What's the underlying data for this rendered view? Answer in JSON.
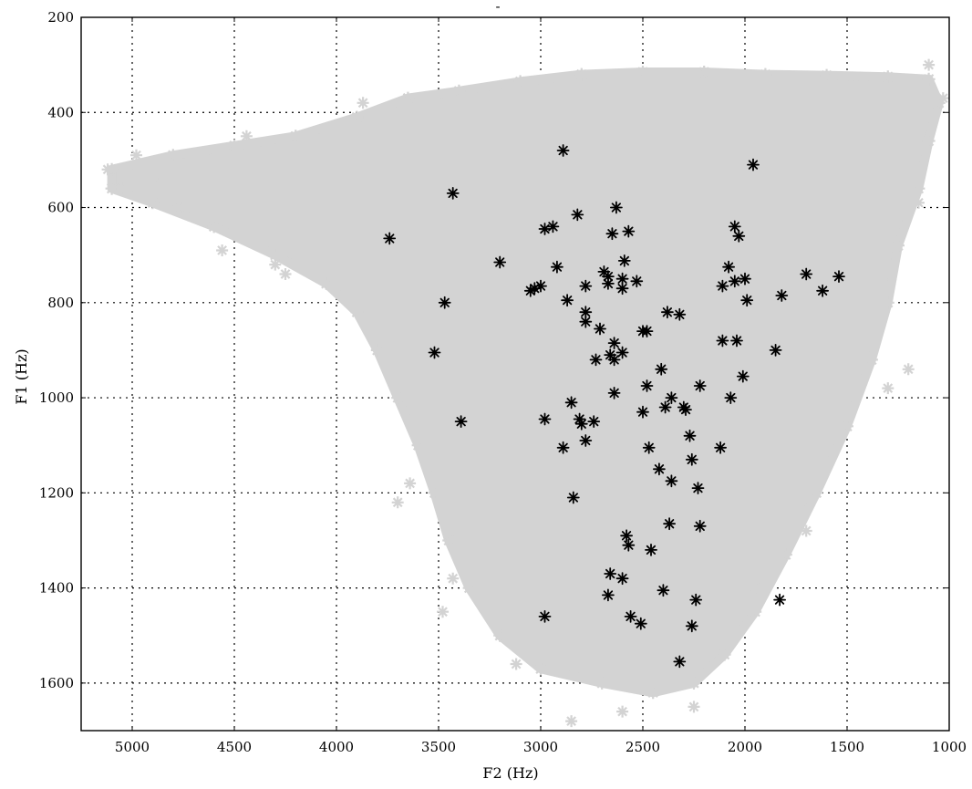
{
  "chart_data": {
    "type": "scatter",
    "title": "-",
    "xlabel": "F2 (Hz)",
    "ylabel": "F1 (Hz)",
    "xlim": [
      5250,
      1000
    ],
    "ylim": [
      1700,
      200
    ],
    "x_reversed": true,
    "y_reversed": true,
    "grid": true,
    "xticks": [
      5000,
      4500,
      4000,
      3500,
      3000,
      2500,
      2000,
      1500,
      1000
    ],
    "yticks": [
      200,
      400,
      600,
      800,
      1000,
      1200,
      1400,
      1600
    ],
    "colors": {
      "background_cloud": "#d3d3d3",
      "highlight": "#000000"
    },
    "marker": "asterisk",
    "background_region": {
      "description_series": "background",
      "outline": [
        [
          5100,
          520
        ],
        [
          4800,
          490
        ],
        [
          4500,
          470
        ],
        [
          4200,
          450
        ],
        [
          3900,
          410
        ],
        [
          3650,
          370
        ],
        [
          3400,
          355
        ],
        [
          3100,
          335
        ],
        [
          2800,
          320
        ],
        [
          2500,
          315
        ],
        [
          2200,
          315
        ],
        [
          1900,
          320
        ],
        [
          1600,
          322
        ],
        [
          1300,
          325
        ],
        [
          1100,
          330
        ],
        [
          1050,
          380
        ],
        [
          1100,
          460
        ],
        [
          1150,
          560
        ],
        [
          1250,
          680
        ],
        [
          1300,
          800
        ],
        [
          1380,
          920
        ],
        [
          1500,
          1060
        ],
        [
          1650,
          1200
        ],
        [
          1800,
          1330
        ],
        [
          1950,
          1450
        ],
        [
          2100,
          1540
        ],
        [
          2250,
          1600
        ],
        [
          2450,
          1620
        ],
        [
          2700,
          1600
        ],
        [
          3000,
          1570
        ],
        [
          3200,
          1500
        ],
        [
          3350,
          1400
        ],
        [
          3450,
          1300
        ],
        [
          3520,
          1200
        ],
        [
          3600,
          1100
        ],
        [
          3700,
          1000
        ],
        [
          3800,
          900
        ],
        [
          3900,
          820
        ],
        [
          4050,
          760
        ],
        [
          4300,
          700
        ],
        [
          4600,
          640
        ],
        [
          4900,
          590
        ],
        [
          5100,
          560
        ]
      ],
      "sample_points": [
        [
          5120,
          520
        ],
        [
          5050,
          560
        ],
        [
          4980,
          490
        ],
        [
          4900,
          540
        ],
        [
          4760,
          600
        ],
        [
          4560,
          690
        ],
        [
          4440,
          450
        ],
        [
          4300,
          720
        ],
        [
          4250,
          740
        ],
        [
          3870,
          380
        ],
        [
          3640,
          1180
        ],
        [
          3700,
          1220
        ],
        [
          3480,
          1450
        ],
        [
          3430,
          1380
        ],
        [
          3120,
          1560
        ],
        [
          2850,
          1680
        ],
        [
          2600,
          1660
        ],
        [
          2250,
          1650
        ],
        [
          1950,
          1400
        ],
        [
          1700,
          1280
        ],
        [
          1300,
          980
        ],
        [
          1200,
          940
        ],
        [
          1150,
          590
        ],
        [
          1100,
          300
        ],
        [
          1030,
          370
        ]
      ]
    },
    "series": [
      {
        "name": "",
        "color": "#000000",
        "points": [
          [
            2890,
            480
          ],
          [
            1960,
            510
          ],
          [
            3430,
            570
          ],
          [
            3740,
            665
          ],
          [
            2630,
            600
          ],
          [
            2820,
            615
          ],
          [
            2980,
            645
          ],
          [
            2940,
            640
          ],
          [
            2650,
            655
          ],
          [
            2570,
            650
          ],
          [
            2050,
            640
          ],
          [
            2030,
            660
          ],
          [
            3200,
            715
          ],
          [
            2590,
            712
          ],
          [
            2920,
            725
          ],
          [
            2690,
            735
          ],
          [
            2670,
            745
          ],
          [
            2600,
            750
          ],
          [
            2530,
            755
          ],
          [
            2670,
            760
          ],
          [
            2600,
            770
          ],
          [
            2780,
            765
          ],
          [
            3000,
            765
          ],
          [
            3050,
            775
          ],
          [
            3030,
            770
          ],
          [
            2080,
            725
          ],
          [
            2050,
            755
          ],
          [
            2000,
            750
          ],
          [
            2110,
            765
          ],
          [
            1700,
            740
          ],
          [
            1540,
            745
          ],
          [
            1620,
            775
          ],
          [
            1820,
            785
          ],
          [
            1990,
            795
          ],
          [
            2870,
            795
          ],
          [
            3470,
            800
          ],
          [
            2780,
            820
          ],
          [
            2780,
            840
          ],
          [
            2380,
            820
          ],
          [
            2320,
            825
          ],
          [
            2710,
            855
          ],
          [
            2500,
            860
          ],
          [
            2480,
            860
          ],
          [
            2640,
            885
          ],
          [
            2600,
            905
          ],
          [
            2660,
            910
          ],
          [
            2640,
            920
          ],
          [
            2730,
            920
          ],
          [
            2110,
            880
          ],
          [
            2040,
            880
          ],
          [
            1850,
            900
          ],
          [
            3520,
            905
          ],
          [
            2410,
            940
          ],
          [
            2010,
            955
          ],
          [
            2640,
            990
          ],
          [
            2480,
            975
          ],
          [
            2220,
            975
          ],
          [
            2360,
            1000
          ],
          [
            2070,
            1000
          ],
          [
            2850,
            1010
          ],
          [
            2390,
            1020
          ],
          [
            2300,
            1020
          ],
          [
            2290,
            1025
          ],
          [
            2500,
            1030
          ],
          [
            2980,
            1045
          ],
          [
            2810,
            1045
          ],
          [
            2800,
            1055
          ],
          [
            2740,
            1050
          ],
          [
            3390,
            1050
          ],
          [
            2270,
            1080
          ],
          [
            2780,
            1090
          ],
          [
            2890,
            1105
          ],
          [
            2470,
            1105
          ],
          [
            2120,
            1105
          ],
          [
            2260,
            1130
          ],
          [
            2420,
            1150
          ],
          [
            2360,
            1175
          ],
          [
            2230,
            1190
          ],
          [
            2840,
            1210
          ],
          [
            2370,
            1265
          ],
          [
            2220,
            1270
          ],
          [
            2580,
            1290
          ],
          [
            2570,
            1310
          ],
          [
            2460,
            1320
          ],
          [
            2660,
            1370
          ],
          [
            2600,
            1380
          ],
          [
            2400,
            1405
          ],
          [
            2670,
            1415
          ],
          [
            2240,
            1425
          ],
          [
            1830,
            1425
          ],
          [
            2980,
            1460
          ],
          [
            2560,
            1460
          ],
          [
            2510,
            1475
          ],
          [
            2260,
            1480
          ],
          [
            2320,
            1555
          ]
        ]
      }
    ]
  }
}
